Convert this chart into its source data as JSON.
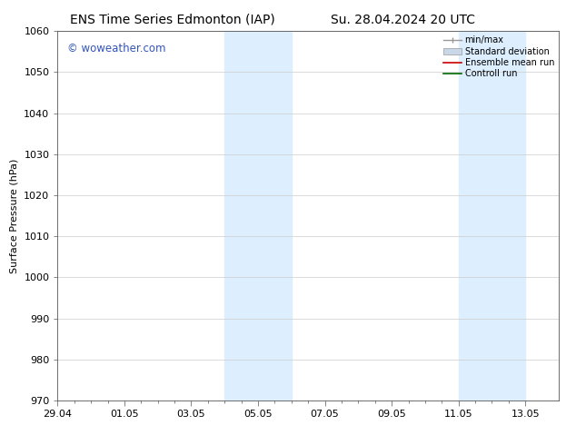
{
  "title_left": "ENS Time Series Edmonton (IAP)",
  "title_right": "Su. 28.04.2024 20 UTC",
  "ylabel": "Surface Pressure (hPa)",
  "ylim": [
    970,
    1060
  ],
  "yticks": [
    970,
    980,
    990,
    1000,
    1010,
    1020,
    1030,
    1040,
    1050,
    1060
  ],
  "xlabel_ticks": [
    "29.04",
    "01.05",
    "03.05",
    "05.05",
    "07.05",
    "09.05",
    "11.05",
    "13.05"
  ],
  "x_tick_positions": [
    0,
    2,
    4,
    6,
    8,
    10,
    12,
    14
  ],
  "x_minor_tick_positions": [
    0.5,
    1,
    1.5,
    2.5,
    3,
    3.5,
    4.5,
    5,
    5.5,
    6.5,
    7,
    7.5,
    8.5,
    9,
    9.5,
    10.5,
    11,
    11.5,
    12.5,
    13,
    13.5
  ],
  "shade_regions": [
    {
      "x_start": 5.0,
      "x_end": 7.0
    },
    {
      "x_start": 12.0,
      "x_end": 14.0
    }
  ],
  "shade_color": "#ddeeff",
  "watermark_text": "© woweather.com",
  "watermark_color": "#3355bb",
  "background_color": "#ffffff",
  "plot_bg_color": "#ffffff",
  "grid_color": "#cccccc",
  "legend_labels": [
    "min/max",
    "Standard deviation",
    "Ensemble mean run",
    "Controll run"
  ],
  "legend_line_colors": [
    "#aaaaaa",
    "#bbccdd",
    "#cc0000",
    "#006600"
  ],
  "title_fontsize": 10,
  "axis_label_fontsize": 8,
  "tick_fontsize": 8,
  "watermark_fontsize": 8.5,
  "legend_fontsize": 7
}
